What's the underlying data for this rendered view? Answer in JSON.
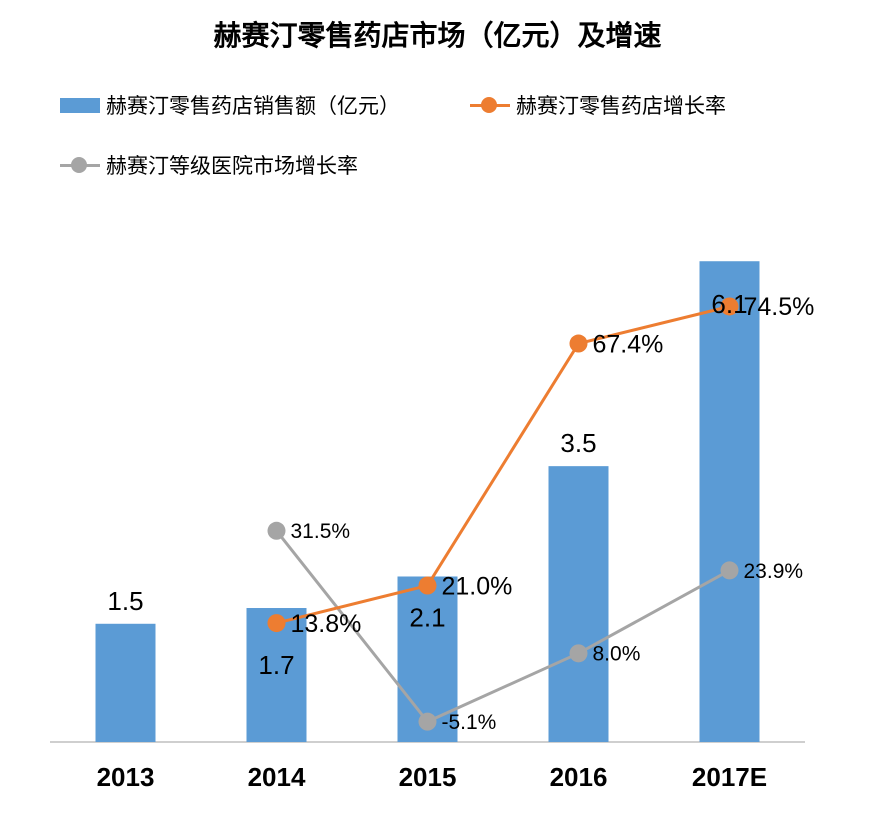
{
  "chart_data": {
    "type": "bar",
    "title": "赫赛汀零售药店市场（亿元）及增速",
    "categories": [
      "2013",
      "2014",
      "2015",
      "2016",
      "2017E"
    ],
    "series": [
      {
        "name": "赫赛汀零售药店销售额（亿元）",
        "type": "bar",
        "values": [
          1.5,
          1.7,
          2.1,
          3.5,
          6.1
        ],
        "labels": [
          "1.5",
          "1.7",
          "2.1",
          "3.5",
          "6.1"
        ]
      },
      {
        "name": "赫赛汀零售药店增长率",
        "type": "line",
        "values": [
          null,
          13.8,
          21.0,
          67.4,
          74.5
        ],
        "labels": [
          null,
          "13.8%",
          "21.0%",
          "67.4%",
          "74.5%"
        ]
      },
      {
        "name": "赫赛汀等级医院市场增长率",
        "type": "line",
        "values": [
          null,
          31.5,
          -5.1,
          8.0,
          23.9
        ],
        "labels": [
          null,
          "31.5%",
          "-5.1%",
          "8.0%",
          "23.9%"
        ]
      }
    ],
    "ylim_bar": [
      0,
      6.75
    ],
    "ylim_line": [
      -9,
      93
    ],
    "colors": {
      "bar": "#5B9BD5",
      "growth_retail": "#ED7D31",
      "growth_hospital": "#A5A5A5",
      "axis": "#BFBFBF"
    }
  }
}
